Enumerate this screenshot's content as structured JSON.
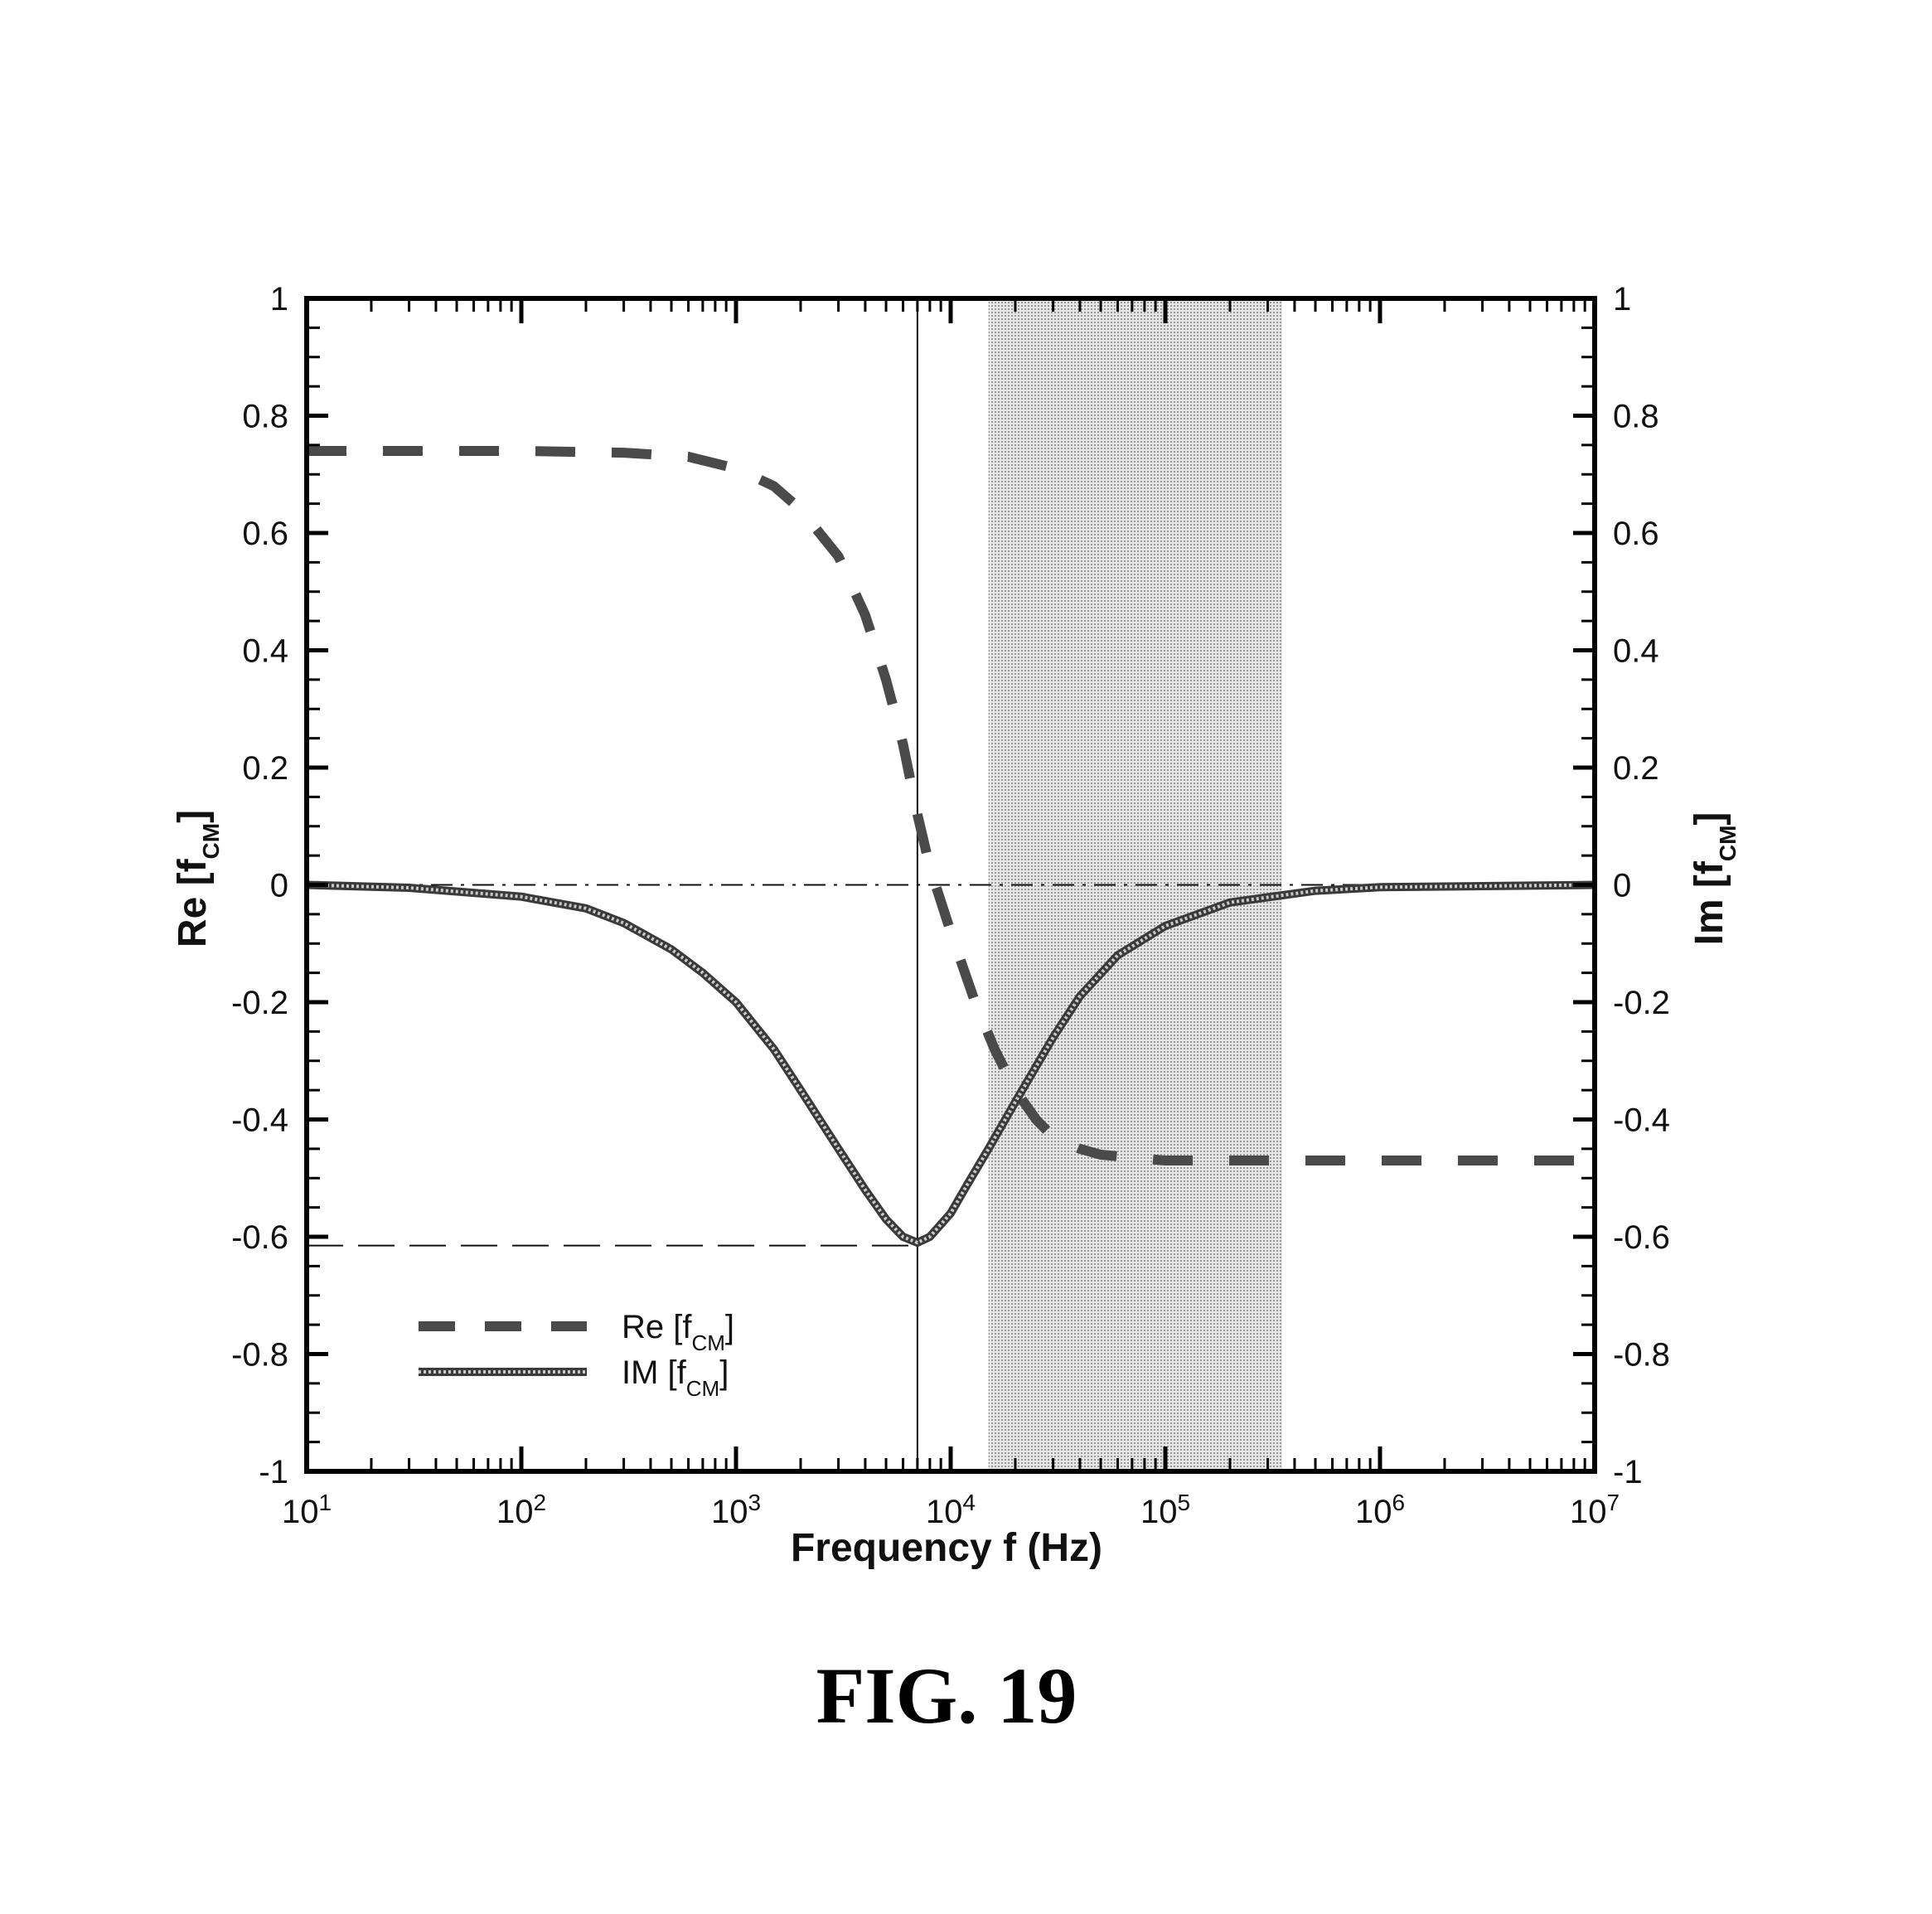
{
  "chart_data": {
    "type": "line",
    "x_scale": "log",
    "xlim": [
      10,
      10000000
    ],
    "ylim": [
      -1,
      1
    ],
    "y2lim": [
      -1,
      1
    ],
    "grid": false,
    "legend_position": "bottom-left",
    "x_ticks": [
      {
        "base": "10",
        "exp": "1",
        "value": 10
      },
      {
        "base": "10",
        "exp": "2",
        "value": 100
      },
      {
        "base": "10",
        "exp": "3",
        "value": 1000
      },
      {
        "base": "10",
        "exp": "4",
        "value": 10000
      },
      {
        "base": "10",
        "exp": "5",
        "value": 100000
      },
      {
        "base": "10",
        "exp": "6",
        "value": 1000000
      },
      {
        "base": "10",
        "exp": "7",
        "value": 10000000
      }
    ],
    "y_ticks": [
      {
        "label": "1",
        "value": 1
      },
      {
        "label": "0.8",
        "value": 0.8
      },
      {
        "label": "0.6",
        "value": 0.6
      },
      {
        "label": "0.4",
        "value": 0.4
      },
      {
        "label": "0.2",
        "value": 0.2
      },
      {
        "label": "0",
        "value": 0
      },
      {
        "label": "-0.2",
        "value": -0.2
      },
      {
        "label": "-0.4",
        "value": -0.4
      },
      {
        "label": "-0.6",
        "value": -0.6
      },
      {
        "label": "-0.8",
        "value": -0.8
      },
      {
        "label": "-1",
        "value": -1
      }
    ],
    "xlabel": "Frequency f (Hz)",
    "ylabel": {
      "text": "Re [f",
      "sub": "CM",
      "close": "]"
    },
    "y2label": {
      "text": "Im [f",
      "sub": "CM",
      "close": "]"
    },
    "shaded_band": {
      "x_start": 15000,
      "x_end": 350000,
      "color": "#c8c8c8"
    },
    "vertical_marker": {
      "x": 7000
    },
    "horizontal_reference": {
      "y": -0.615
    },
    "zero_line": {
      "y": 0
    },
    "series": [
      {
        "name": {
          "text": "Re [f",
          "sub": "CM",
          "close": "]"
        },
        "style": "dashed-thick",
        "color": "#4a4a4a",
        "x": [
          10,
          30,
          100,
          300,
          600,
          1000,
          1500,
          2000,
          3000,
          4000,
          5000,
          6000,
          7000,
          8000,
          10000,
          13000,
          16000,
          20000,
          25000,
          30000,
          40000,
          50000,
          70000,
          100000,
          200000,
          500000,
          1000000,
          3000000,
          10000000
        ],
        "y": [
          0.74,
          0.74,
          0.74,
          0.737,
          0.73,
          0.71,
          0.68,
          0.64,
          0.56,
          0.46,
          0.35,
          0.24,
          0.12,
          0.03,
          -0.08,
          -0.2,
          -0.28,
          -0.35,
          -0.4,
          -0.43,
          -0.45,
          -0.46,
          -0.465,
          -0.47,
          -0.47,
          -0.47,
          -0.47,
          -0.47,
          -0.47
        ]
      },
      {
        "name": {
          "text": "IM [f",
          "sub": "CM",
          "close": "]"
        },
        "style": "solid-hatched",
        "color": "#6e6e6e",
        "x": [
          10,
          30,
          100,
          200,
          300,
          500,
          700,
          1000,
          1500,
          2000,
          3000,
          4000,
          5000,
          6000,
          7000,
          8000,
          10000,
          12000,
          15000,
          20000,
          30000,
          40000,
          60000,
          100000,
          200000,
          500000,
          1000000,
          10000000
        ],
        "y": [
          0,
          -0.005,
          -0.02,
          -0.04,
          -0.065,
          -0.11,
          -0.15,
          -0.2,
          -0.28,
          -0.35,
          -0.45,
          -0.52,
          -0.57,
          -0.6,
          -0.61,
          -0.6,
          -0.56,
          -0.51,
          -0.45,
          -0.37,
          -0.26,
          -0.19,
          -0.12,
          -0.07,
          -0.03,
          -0.01,
          -0.004,
          0
        ]
      }
    ]
  },
  "caption": "FIG. 19"
}
